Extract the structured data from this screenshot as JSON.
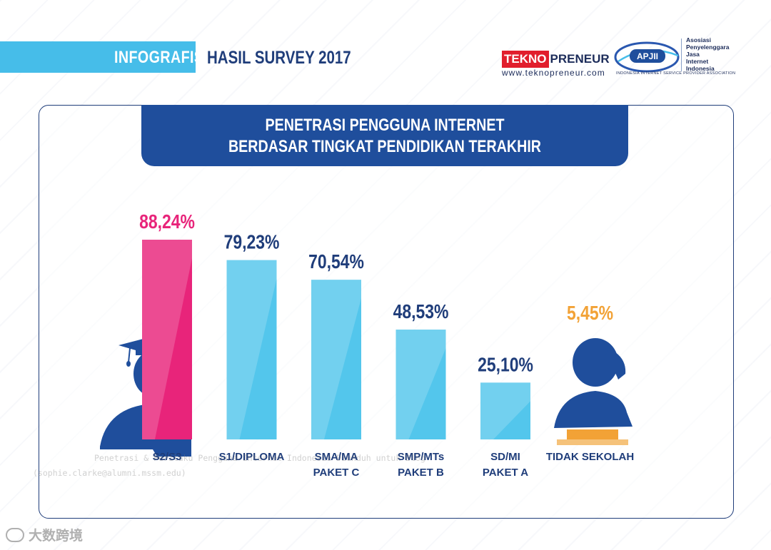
{
  "header": {
    "tag": "INFOGRAFIS",
    "survey": "HASIL SURVEY 2017",
    "teknopreneur_red": "TEKNO",
    "teknopreneur_dark": "PRENEUR",
    "teknopreneur_url": "www.teknopreneur.com",
    "apjii_abbr": "APJII",
    "apjii_name_lines": [
      "Asosiasi",
      "Penyelenggara",
      "Jasa",
      "Internet",
      "Indonesia"
    ],
    "apjii_sub": "INDONESIA INTERNET SERVICE PROVIDER ASSOCIATION"
  },
  "banner": {
    "line1": "PENETRASI PENGGUNA INTERNET",
    "line2": "BERDASAR TINGKAT PENDIDIKAN TERAKHIR"
  },
  "watermark": {
    "line1": "Penetrasi & Perilaku Pengguna Internet Indonesia Diunduh untuk Blog",
    "line2": "(sophie.clarke@alumni.mssm.edu)"
  },
  "corner_mark": "大数跨境",
  "chart_data": {
    "type": "bar",
    "categories": [
      "S2/S3",
      "S1/DIPLOMA",
      "SMA/MA\nPAKET C",
      "SMP/MTs\nPAKET B",
      "SD/MI\nPAKET A",
      "TIDAK SEKOLAH"
    ],
    "values": [
      88.24,
      79.23,
      70.54,
      48.53,
      25.1,
      5.45
    ],
    "value_labels": [
      "88,24%",
      "79,23%",
      "70,54%",
      "48,53%",
      "25,10%",
      "5,45%"
    ],
    "unit": "%",
    "ylim": [
      0,
      100
    ],
    "grid": false,
    "colors": {
      "highlight_max": "#e8247a",
      "highlight_min": "#f2a236",
      "default": "#53c6ec",
      "label_default": "#1f3d7a",
      "label_max": "#e8247a",
      "label_min": "#f2a236"
    }
  },
  "colors": {
    "navy": "#1f3d7a",
    "banner_blue": "#1f4e9c",
    "sky": "#46bde9"
  }
}
